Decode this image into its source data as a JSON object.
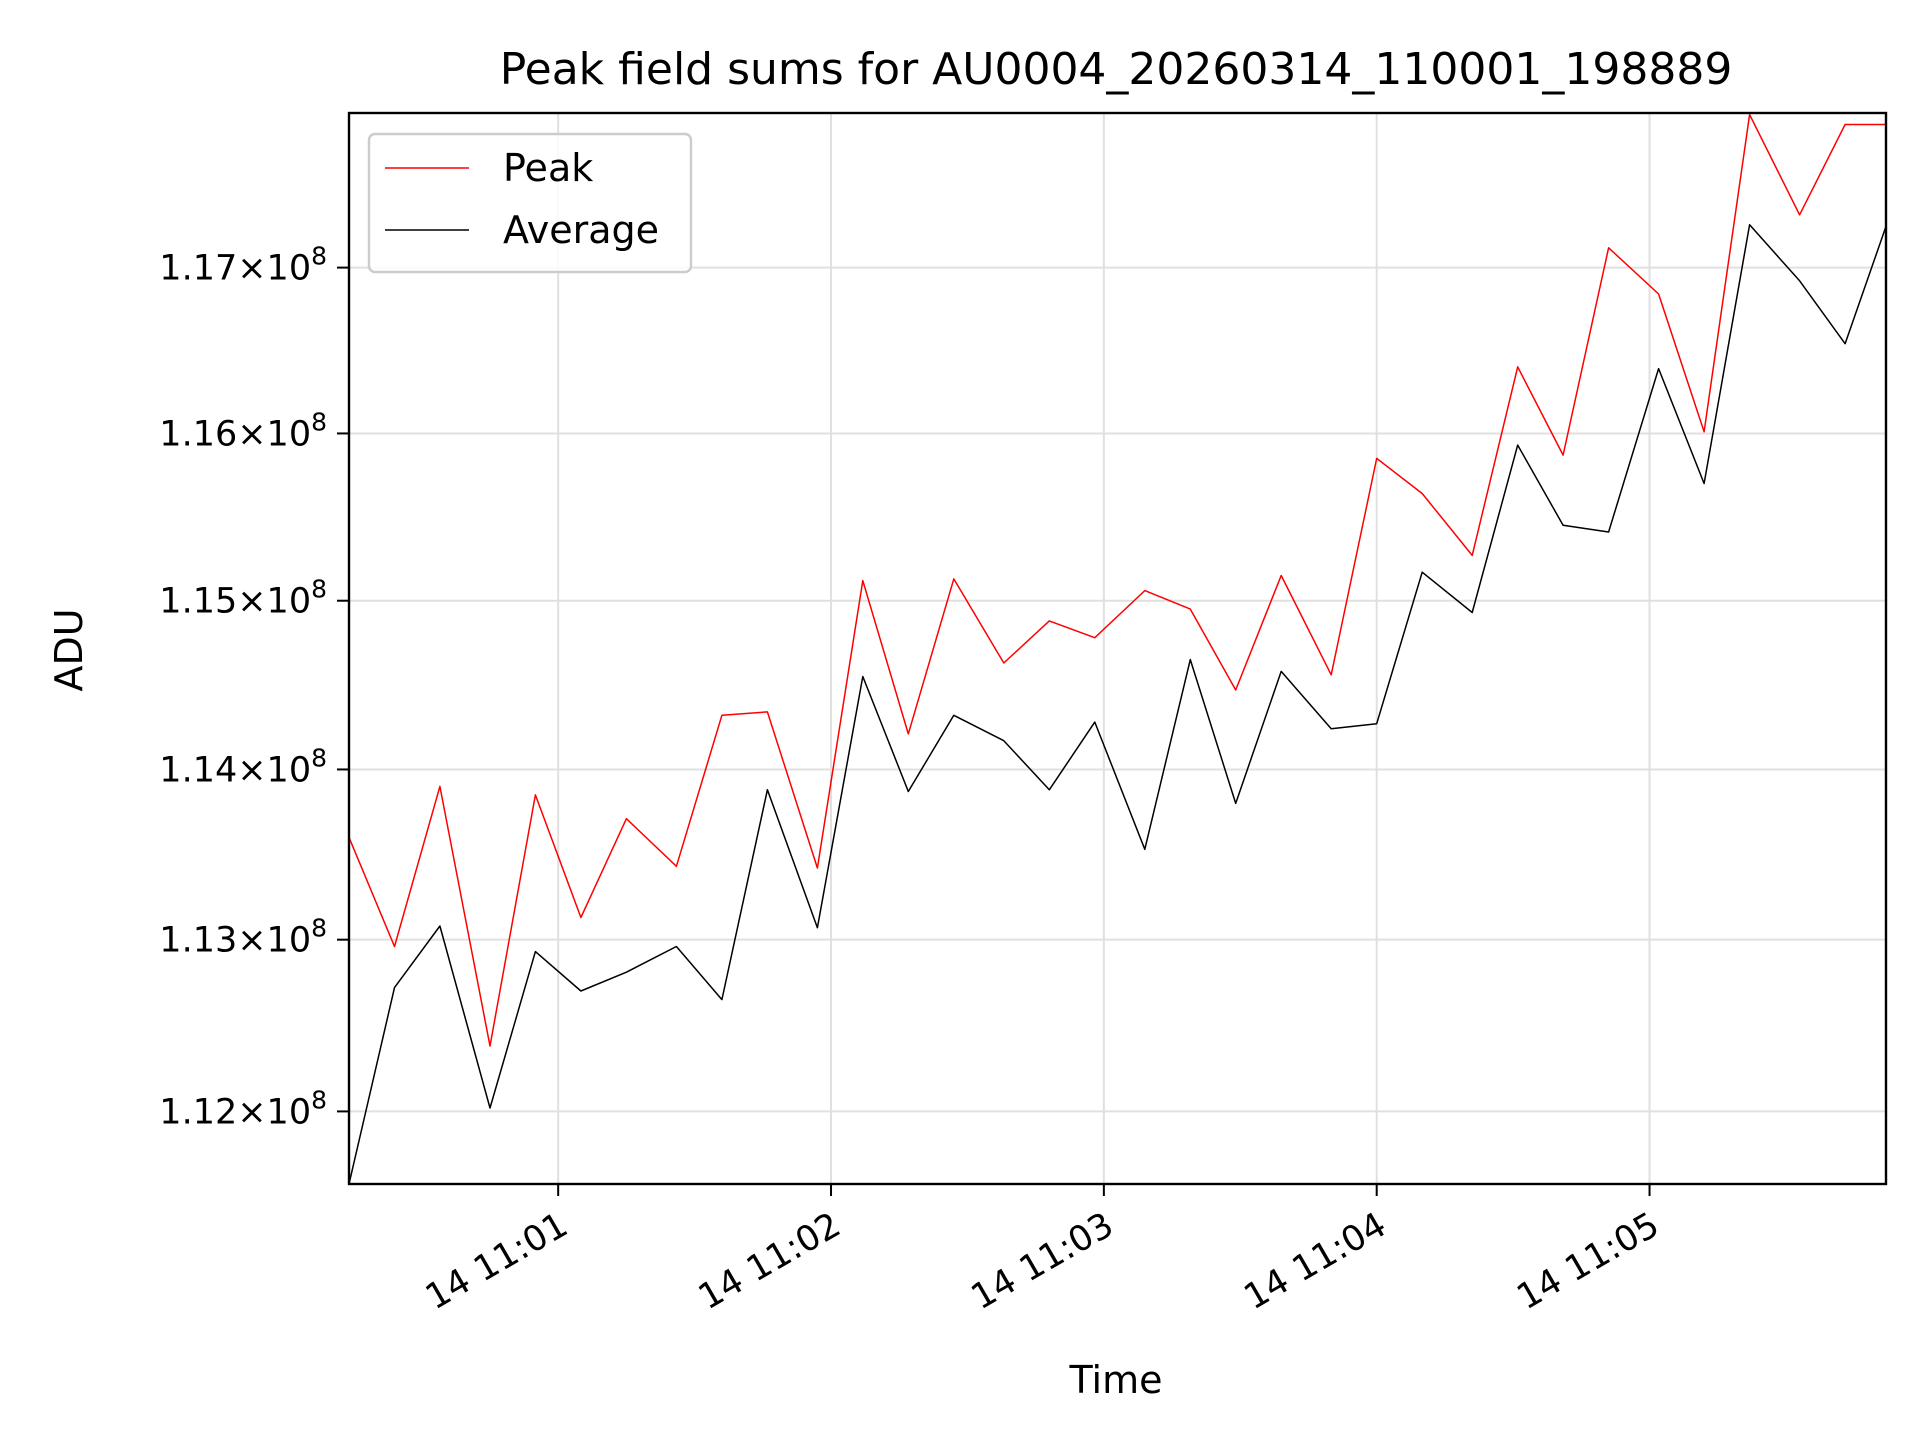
{
  "chart_data": {
    "type": "line",
    "title": "Peak field sums for AU0004_20260314_110001_198889",
    "xlabel": "Time",
    "ylabel": "ADU",
    "x_tick_labels": [
      "14 11:01",
      "14 11:02",
      "14 11:03",
      "14 11:04",
      "14 11:05"
    ],
    "y_tick_labels": [
      {
        "mantissa": "1.12",
        "base": "×10",
        "exp": "8",
        "value": 112000000
      },
      {
        "mantissa": "1.13",
        "base": "×10",
        "exp": "8",
        "value": 113000000
      },
      {
        "mantissa": "1.14",
        "base": "×10",
        "exp": "8",
        "value": 114000000
      },
      {
        "mantissa": "1.15",
        "base": "×10",
        "exp": "8",
        "value": 115000000
      },
      {
        "mantissa": "1.16",
        "base": "×10",
        "exp": "8",
        "value": 116000000
      },
      {
        "mantissa": "1.17",
        "base": "×10",
        "exp": "8",
        "value": 117000000
      }
    ],
    "x_range": [
      "2026-03-14 11:00:14",
      "2026-03-14 11:05:52"
    ],
    "x_ticks": [
      "2026-03-14 11:01:00",
      "2026-03-14 11:02:00",
      "2026-03-14 11:03:00",
      "2026-03-14 11:04:00",
      "2026-03-14 11:05:00"
    ],
    "y_scale": "log",
    "ylim": [
      111580000,
      117940000
    ],
    "grid": true,
    "legend": "upper left",
    "x": [
      "2026-03-14 11:00:14",
      "2026-03-14 11:00:24",
      "2026-03-14 11:00:34",
      "2026-03-14 11:00:45",
      "2026-03-14 11:00:55",
      "2026-03-14 11:01:05",
      "2026-03-14 11:01:15",
      "2026-03-14 11:01:26",
      "2026-03-14 11:01:36",
      "2026-03-14 11:01:46",
      "2026-03-14 11:01:57",
      "2026-03-14 11:02:07",
      "2026-03-14 11:02:17",
      "2026-03-14 11:02:27",
      "2026-03-14 11:02:38",
      "2026-03-14 11:02:48",
      "2026-03-14 11:02:58",
      "2026-03-14 11:03:09",
      "2026-03-14 11:03:19",
      "2026-03-14 11:03:29",
      "2026-03-14 11:03:39",
      "2026-03-14 11:03:50",
      "2026-03-14 11:04:00",
      "2026-03-14 11:04:10",
      "2026-03-14 11:04:21",
      "2026-03-14 11:04:31",
      "2026-03-14 11:04:41",
      "2026-03-14 11:04:51",
      "2026-03-14 11:05:02",
      "2026-03-14 11:05:12",
      "2026-03-14 11:05:22",
      "2026-03-14 11:05:33",
      "2026-03-14 11:05:43",
      "2026-03-14 11:05:52"
    ],
    "series": [
      {
        "name": "Peak",
        "color": "#ff0000",
        "values": [
          113600000,
          112960000,
          113900000,
          112380000,
          113850000,
          113130000,
          113710000,
          113430000,
          114320000,
          114340000,
          113420000,
          115120000,
          114210000,
          115130000,
          114630000,
          114880000,
          114780000,
          115060000,
          114950000,
          114470000,
          115150000,
          114560000,
          115850000,
          115640000,
          115270000,
          116400000,
          115870000,
          117120000,
          116840000,
          116010000,
          117930000,
          117320000,
          117870000,
          117870000
        ]
      },
      {
        "name": "Average",
        "color": "#000000",
        "values": [
          111580000,
          112720000,
          113080000,
          112020000,
          112930000,
          112700000,
          112810000,
          112960000,
          112650000,
          113880000,
          113070000,
          114550000,
          113870000,
          114320000,
          114170000,
          113880000,
          114280000,
          113530000,
          114650000,
          113800000,
          114580000,
          114240000,
          114270000,
          115170000,
          114930000,
          115930000,
          115450000,
          115410000,
          116390000,
          115700000,
          117260000,
          116920000,
          116540000,
          117250000
        ]
      }
    ]
  }
}
